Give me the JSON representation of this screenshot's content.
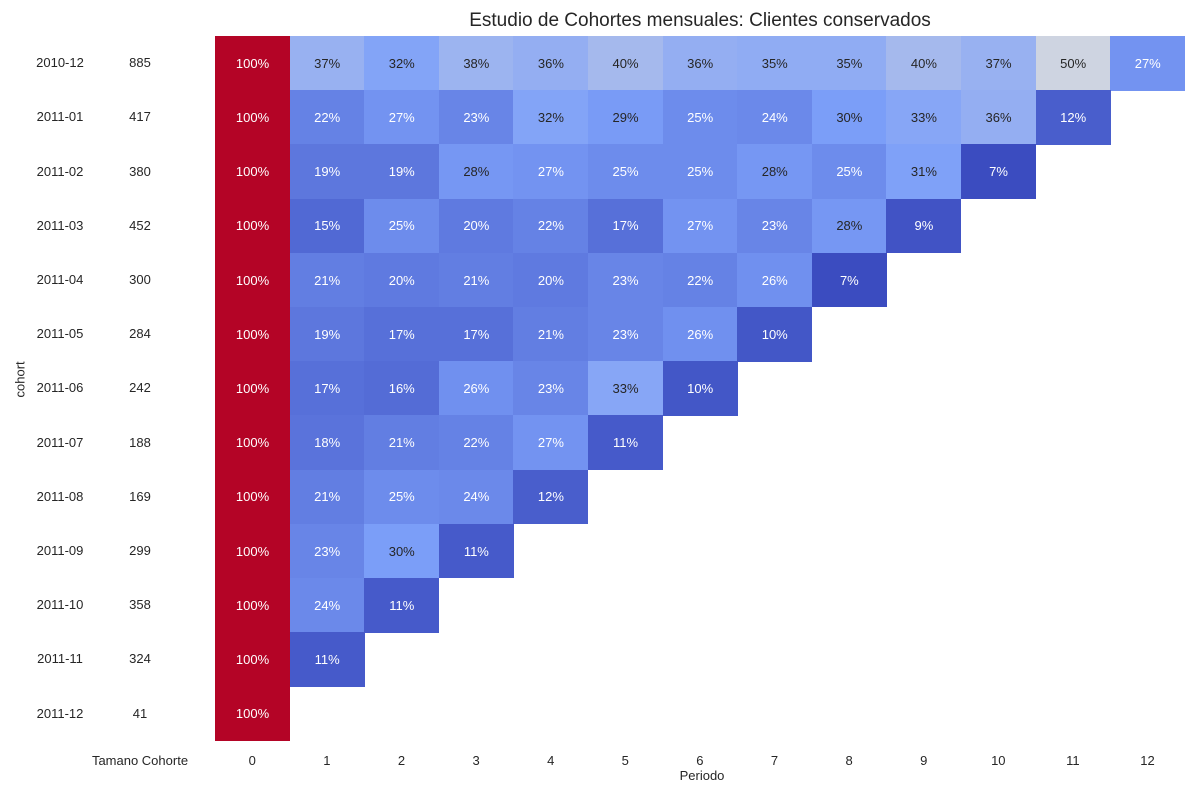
{
  "chart_data": {
    "type": "heatmap",
    "title": "Estudio de Cohortes mensuales: Clientes conservados",
    "xlabel": "Periodo",
    "ylabel": "cohort",
    "size_column_label": "Tamano Cohorte",
    "x": [
      "0",
      "1",
      "2",
      "3",
      "4",
      "5",
      "6",
      "7",
      "8",
      "9",
      "10",
      "11",
      "12"
    ],
    "cohorts": [
      "2010-12",
      "2011-01",
      "2011-02",
      "2011-03",
      "2011-04",
      "2011-05",
      "2011-06",
      "2011-07",
      "2011-08",
      "2011-09",
      "2011-10",
      "2011-11",
      "2011-12"
    ],
    "cohort_sizes": [
      "885",
      "417",
      "380",
      "452",
      "300",
      "284",
      "242",
      "188",
      "169",
      "299",
      "358",
      "324",
      "41"
    ],
    "values": [
      [
        100,
        37,
        32,
        38,
        36,
        40,
        36,
        35,
        35,
        40,
        37,
        50,
        27
      ],
      [
        100,
        22,
        27,
        23,
        32,
        29,
        25,
        24,
        30,
        33,
        36,
        12
      ],
      [
        100,
        19,
        19,
        28,
        27,
        25,
        25,
        28,
        25,
        31,
        7
      ],
      [
        100,
        15,
        25,
        20,
        22,
        17,
        27,
        23,
        28,
        9
      ],
      [
        100,
        21,
        20,
        21,
        20,
        23,
        22,
        26,
        7
      ],
      [
        100,
        19,
        17,
        17,
        21,
        23,
        26,
        10
      ],
      [
        100,
        17,
        16,
        26,
        23,
        33,
        10
      ],
      [
        100,
        18,
        21,
        22,
        27,
        11
      ],
      [
        100,
        21,
        25,
        24,
        12
      ],
      [
        100,
        23,
        30,
        11
      ],
      [
        100,
        24,
        11
      ],
      [
        100,
        11
      ],
      [
        100
      ]
    ],
    "value_format": "percent",
    "colormap": "coolwarm",
    "grid": false,
    "legend": "none"
  }
}
